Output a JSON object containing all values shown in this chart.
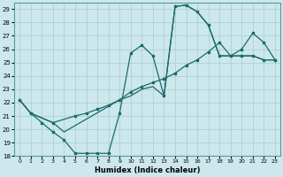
{
  "xlabel": "Humidex (Indice chaleur)",
  "bg_color": "#cce8ec",
  "grid_color": "#aacccc",
  "line_color": "#1a6b6b",
  "xlim": [
    -0.5,
    23.5
  ],
  "ylim": [
    18,
    29.5
  ],
  "xticks": [
    0,
    1,
    2,
    3,
    4,
    5,
    6,
    7,
    8,
    9,
    10,
    11,
    12,
    13,
    14,
    15,
    16,
    17,
    18,
    19,
    20,
    21,
    22,
    23
  ],
  "yticks": [
    18,
    19,
    20,
    21,
    22,
    23,
    24,
    25,
    26,
    27,
    28,
    29
  ],
  "curve1_x": [
    0,
    1,
    2,
    3,
    4,
    5,
    6,
    7,
    8,
    9,
    10,
    11,
    12,
    13,
    14,
    15,
    16,
    17,
    18,
    19,
    20,
    21,
    22,
    23
  ],
  "curve1_y": [
    22.2,
    21.2,
    20.5,
    19.8,
    19.2,
    18.2,
    18.2,
    18.2,
    18.2,
    21.2,
    25.7,
    26.3,
    25.5,
    22.5,
    29.2,
    29.3,
    28.8,
    27.8,
    25.5,
    25.5,
    25.5,
    25.5,
    25.2,
    25.2
  ],
  "curve2_x": [
    0,
    1,
    3,
    5,
    6,
    7,
    8,
    9,
    10,
    11,
    12,
    13,
    14,
    15,
    16,
    17,
    18,
    19,
    20,
    21,
    22,
    23
  ],
  "curve2_y": [
    22.2,
    21.2,
    20.5,
    21.0,
    21.2,
    21.5,
    21.8,
    22.2,
    22.8,
    23.2,
    23.5,
    23.8,
    24.2,
    24.8,
    25.2,
    25.8,
    26.5,
    25.5,
    26.0,
    27.2,
    26.5,
    25.2
  ],
  "curve3_x": [
    0,
    1,
    3,
    4,
    9,
    10,
    11,
    12,
    13,
    14,
    15,
    16,
    17,
    18,
    19,
    20,
    21,
    22,
    23
  ],
  "curve3_y": [
    22.2,
    21.2,
    20.5,
    19.8,
    22.2,
    22.5,
    23.0,
    23.2,
    22.5,
    29.2,
    29.3,
    28.8,
    27.8,
    25.5,
    25.5,
    25.5,
    25.5,
    25.2,
    25.2
  ]
}
